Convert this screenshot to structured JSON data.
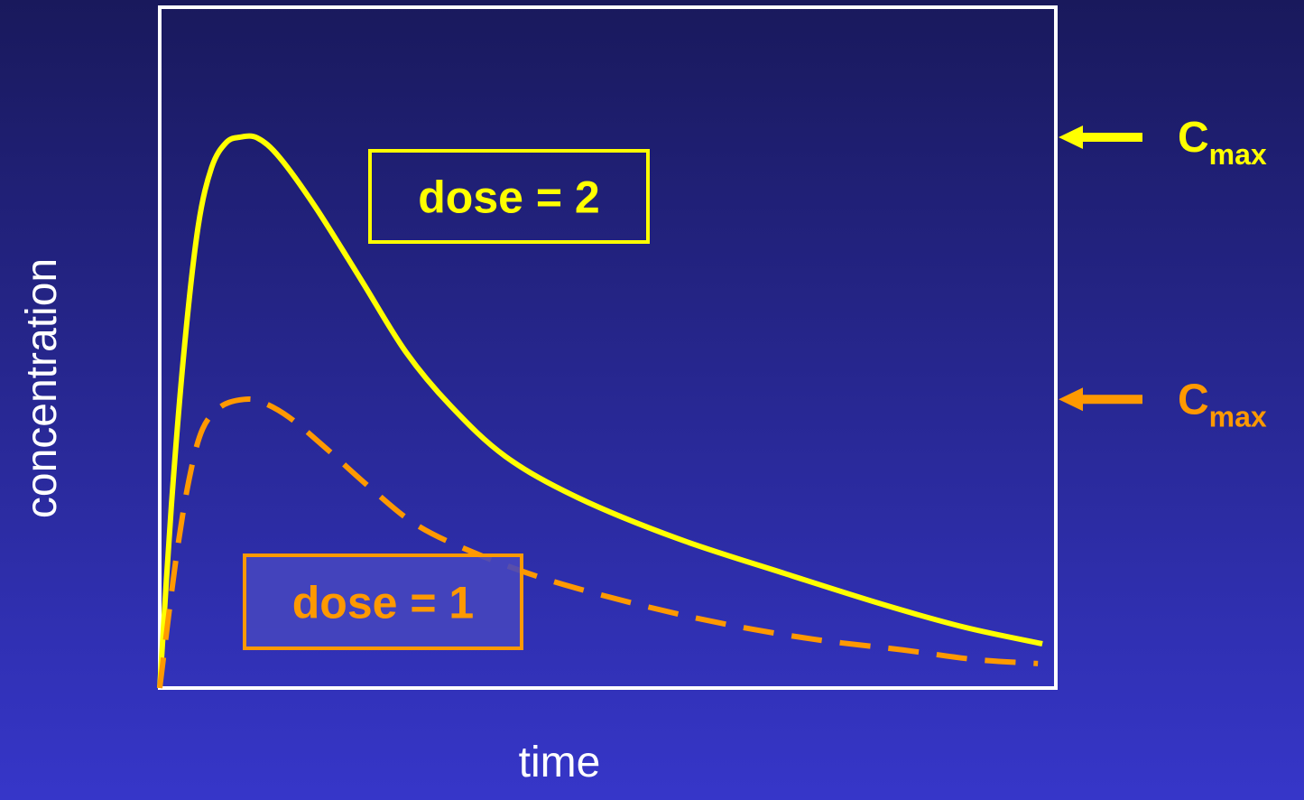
{
  "chart_data": {
    "type": "line",
    "xlabel": "time",
    "ylabel": "concentration",
    "xlim": [
      0,
      100
    ],
    "ylim": [
      0,
      100
    ],
    "series": [
      {
        "label": "dose = 2",
        "color": "#ffff00",
        "dashed": false,
        "peak_label": {
          "main": "C",
          "sub": "max"
        },
        "x": [
          0,
          1.3,
          2.8,
          4.3,
          5.8,
          7.4,
          8.9,
          10.9,
          13.4,
          17.4,
          22.5,
          27.5,
          32.5,
          38.6,
          46.6,
          57.7,
          69.8,
          80.9,
          89.9,
          98.5
        ],
        "values": [
          0,
          26.8,
          50.7,
          67.9,
          76.5,
          80.1,
          80.9,
          80.8,
          77.9,
          70.6,
          59.9,
          49.3,
          41.4,
          34.0,
          28.0,
          22.0,
          16.8,
          12.2,
          8.9,
          6.5
        ]
      },
      {
        "label": "dose = 1",
        "color": "#ff9900",
        "dashed": true,
        "peak_label": {
          "main": "C",
          "sub": "max"
        },
        "x": [
          0,
          1.8,
          3.3,
          4.8,
          6.9,
          9.4,
          11.4,
          14.4,
          18.4,
          23.5,
          28.5,
          34.5,
          42.6,
          52.7,
          62.7,
          72.8,
          82.9,
          90.9,
          98.0
        ],
        "values": [
          0,
          18.8,
          30.8,
          38.1,
          41.4,
          42.4,
          42.0,
          39.8,
          35.4,
          29.4,
          24.1,
          20.2,
          16.2,
          12.5,
          9.5,
          7.2,
          5.6,
          4.2,
          3.6
        ]
      }
    ]
  }
}
